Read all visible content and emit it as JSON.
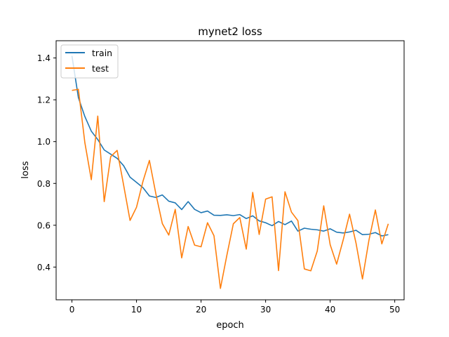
{
  "chart_data": {
    "type": "line",
    "title": "mynet2 loss",
    "xlabel": "epoch",
    "ylabel": "loss",
    "xlim": [
      -2.45,
      51.45
    ],
    "ylim": [
      0.2435,
      1.4825
    ],
    "xticks": [
      0,
      10,
      20,
      30,
      40,
      50
    ],
    "yticks": [
      0.4,
      0.6,
      0.8,
      1.0,
      1.2,
      1.4
    ],
    "ytick_labels": [
      "0.4",
      "0.6",
      "0.8",
      "1.0",
      "1.2",
      "1.4"
    ],
    "grid": false,
    "legend_position": "top-left",
    "x": [
      0,
      1,
      2,
      3,
      4,
      5,
      6,
      7,
      8,
      9,
      10,
      11,
      12,
      13,
      14,
      15,
      16,
      17,
      18,
      19,
      20,
      21,
      22,
      23,
      24,
      25,
      26,
      27,
      28,
      29,
      30,
      31,
      32,
      33,
      34,
      35,
      36,
      37,
      38,
      39,
      40,
      41,
      42,
      43,
      44,
      45,
      46,
      47,
      48,
      49
    ],
    "series": [
      {
        "name": "train",
        "color": "#1f77b4",
        "values": [
          1.41,
          1.21,
          1.12,
          1.05,
          1.01,
          0.96,
          0.94,
          0.92,
          0.885,
          0.83,
          0.805,
          0.78,
          0.74,
          0.733,
          0.745,
          0.715,
          0.707,
          0.675,
          0.713,
          0.676,
          0.66,
          0.668,
          0.648,
          0.647,
          0.65,
          0.646,
          0.651,
          0.632,
          0.645,
          0.621,
          0.612,
          0.598,
          0.618,
          0.603,
          0.62,
          0.572,
          0.586,
          0.581,
          0.578,
          0.572,
          0.583,
          0.567,
          0.563,
          0.568,
          0.576,
          0.555,
          0.557,
          0.565,
          0.549,
          0.555
        ]
      },
      {
        "name": "test",
        "color": "#ff7f0e",
        "values": [
          1.245,
          1.25,
          0.995,
          0.818,
          1.122,
          0.713,
          0.928,
          0.958,
          0.793,
          0.623,
          0.686,
          0.81,
          0.91,
          0.75,
          0.608,
          0.553,
          0.676,
          0.444,
          0.594,
          0.505,
          0.497,
          0.612,
          0.55,
          0.298,
          0.457,
          0.607,
          0.637,
          0.486,
          0.757,
          0.556,
          0.725,
          0.736,
          0.383,
          0.76,
          0.663,
          0.622,
          0.391,
          0.382,
          0.477,
          0.693,
          0.507,
          0.414,
          0.528,
          0.653,
          0.515,
          0.343,
          0.528,
          0.673,
          0.511,
          0.607
        ]
      }
    ]
  }
}
